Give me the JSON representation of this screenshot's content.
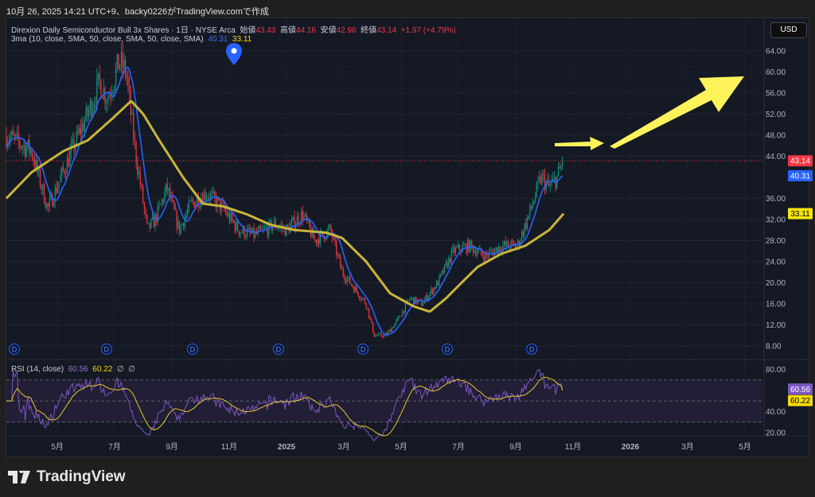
{
  "caption": "10月 26, 2025 14:21 UTC+9、backy0226がTradingView.comで作成",
  "legend": {
    "symbol": "Direxion Daily Semiconductor Bull 3x Shares · 1日 · NYSE Arca",
    "open_label": "始値",
    "open": "43.43",
    "high_label": "高値",
    "high": "44.16",
    "low_label": "安値",
    "low": "42.96",
    "close_label": "終値",
    "close": "43.14",
    "change": "+1.97 (+4.79%)",
    "ma_label": "3ma (10, close, SMA, 50, close, SMA, 50, close, SMA)",
    "ma10": "40.31",
    "ma50": "33.11",
    "rsi_label": "RSI (14, close)",
    "rsi": "60.56",
    "rsi_ma": "60.22",
    "na1": "∅",
    "na2": "∅"
  },
  "currency": "USD",
  "logo": "TradingView",
  "colors": {
    "up": "#089981",
    "down": "#f23645",
    "ma10": "#2962ff",
    "ma50": "#c9b53a",
    "rsi": "#7e57c2",
    "rsi_ma": "#e5c82a",
    "arrow": "#fff35c"
  },
  "chart_data": {
    "type": "candlestick",
    "title": "Direxion Daily Semiconductor Bull 3x Shares (SOXL) 1D",
    "x_unit": "months since 2025-01",
    "price_ticks": [
      "64.00",
      "60.00",
      "56.00",
      "52.00",
      "48.00",
      "44.00",
      "36.00",
      "32.00",
      "28.00",
      "24.00",
      "20.00",
      "16.00",
      "12.00",
      "8.00"
    ],
    "price_tick_values": [
      64,
      60,
      56,
      52,
      48,
      44,
      36,
      32,
      28,
      24,
      20,
      16,
      12,
      8
    ],
    "ylim": [
      8,
      64
    ],
    "rsi_ticks": [
      "80.00",
      "40.00",
      "20.00"
    ],
    "rsi_tick_values": [
      80,
      40,
      20
    ],
    "rsi_bands": [
      70,
      50,
      30
    ],
    "time_ticks": [
      "5月",
      "7月",
      "9月",
      "11月",
      "2025",
      "3月",
      "5月",
      "7月",
      "9月",
      "11月",
      "2026",
      "3月",
      "5月"
    ],
    "time_tick_values": [
      -8,
      -6,
      -4,
      -2,
      0,
      2,
      4,
      6,
      8,
      10,
      12,
      14,
      16
    ],
    "xlim": [
      -9.8,
      16.7
    ],
    "last": {
      "close": 43.14,
      "ma10": 40.31,
      "ma50": 33.11,
      "rsi": 60.56,
      "rsi_ma": 60.22
    },
    "close_path": [
      [
        -9.78,
        48
      ],
      [
        -8.9,
        45
      ],
      [
        -8.33,
        34
      ],
      [
        -7.5,
        45
      ],
      [
        -6.94,
        52
      ],
      [
        -6.53,
        58
      ],
      [
        -6.25,
        55
      ],
      [
        -5.83,
        62
      ],
      [
        -5.6,
        60
      ],
      [
        -5.28,
        45
      ],
      [
        -4.86,
        30
      ],
      [
        -4.58,
        32
      ],
      [
        -4.17,
        38
      ],
      [
        -3.75,
        30
      ],
      [
        -3.33,
        35
      ],
      [
        -2.78,
        37
      ],
      [
        -2.22,
        34
      ],
      [
        -1.67,
        30
      ],
      [
        -1.11,
        29
      ],
      [
        -0.42,
        31
      ],
      [
        0,
        30
      ],
      [
        0.56,
        33
      ],
      [
        0.97,
        28
      ],
      [
        1.53,
        30
      ],
      [
        1.94,
        22
      ],
      [
        2.36,
        19
      ],
      [
        2.78,
        16
      ],
      [
        3.06,
        10
      ],
      [
        3.47,
        10
      ],
      [
        3.89,
        13
      ],
      [
        4.31,
        17
      ],
      [
        4.72,
        16
      ],
      [
        5.28,
        20
      ],
      [
        5.83,
        26
      ],
      [
        6.39,
        27
      ],
      [
        6.94,
        25
      ],
      [
        7.5,
        27
      ],
      [
        8.06,
        27
      ],
      [
        8.47,
        33
      ],
      [
        8.89,
        40
      ],
      [
        9.17,
        38
      ],
      [
        9.44,
        40
      ],
      [
        9.67,
        43.14
      ]
    ],
    "ma50_path": [
      [
        -9.78,
        36
      ],
      [
        -8.89,
        41
      ],
      [
        -7.78,
        45
      ],
      [
        -6.94,
        47
      ],
      [
        -6.11,
        51
      ],
      [
        -5.42,
        54.5
      ],
      [
        -5,
        52
      ],
      [
        -4.44,
        47
      ],
      [
        -3.61,
        40
      ],
      [
        -2.92,
        35
      ],
      [
        -2.22,
        34.5
      ],
      [
        -1.39,
        33
      ],
      [
        -0.56,
        31
      ],
      [
        0.28,
        30
      ],
      [
        1.39,
        29.5
      ],
      [
        1.94,
        28.5
      ],
      [
        2.78,
        24
      ],
      [
        3.61,
        18
      ],
      [
        4.44,
        15.5
      ],
      [
        5,
        14.5
      ],
      [
        5.56,
        17
      ],
      [
        6.11,
        20
      ],
      [
        6.67,
        23
      ],
      [
        7.5,
        25.5
      ],
      [
        8.33,
        27
      ],
      [
        9.17,
        30
      ],
      [
        9.67,
        33.11
      ]
    ],
    "dividend_markers": [
      "D",
      "D",
      "D",
      "D",
      "D",
      "D",
      "D"
    ],
    "dividend_times": [
      -9.5,
      -6.28,
      -3.28,
      -0.28,
      2.67,
      5.61,
      8.56
    ]
  }
}
